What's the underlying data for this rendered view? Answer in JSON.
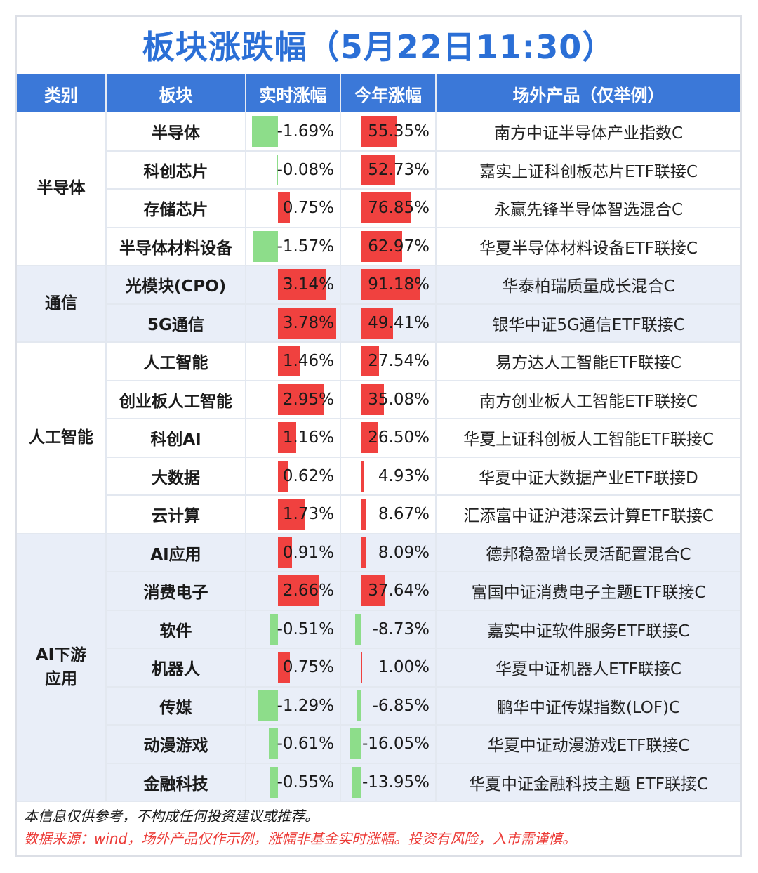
{
  "title": "板块涨跌幅（5月22日11:30）",
  "headers": [
    "类别",
    "板块",
    "实时涨幅",
    "今年涨幅",
    "场外产品（仅举例）"
  ],
  "colors": {
    "header_bg": "#3b78d8",
    "title": "#2b6fd6",
    "positive": "#f0413f",
    "negative": "#8ddd8a",
    "note_red": "#ec3b37"
  },
  "groups": [
    {
      "category": "半导体",
      "rows": [
        {
          "sector": "半导体",
          "realtime": "-1.69%",
          "rt": -1.69,
          "ytd": "55.35%",
          "yt": 55.35,
          "product": "南方中证半导体产业指数C"
        },
        {
          "sector": "科创芯片",
          "realtime": "-0.08%",
          "rt": -0.08,
          "ytd": "52.73%",
          "yt": 52.73,
          "product": "嘉实上证科创板芯片ETF联接C"
        },
        {
          "sector": "存储芯片",
          "realtime": "0.75%",
          "rt": 0.75,
          "ytd": "76.85%",
          "yt": 76.85,
          "product": "永赢先锋半导体智选混合C"
        },
        {
          "sector": "半导体材料设备",
          "realtime": "-1.57%",
          "rt": -1.57,
          "ytd": "62.97%",
          "yt": 62.97,
          "product": "华夏半导体材料设备ETF联接C"
        }
      ]
    },
    {
      "category": "通信",
      "rows": [
        {
          "sector": "光模块(CPO)",
          "realtime": "3.14%",
          "rt": 3.14,
          "ytd": "91.18%",
          "yt": 91.18,
          "product": "华泰柏瑞质量成长混合C"
        },
        {
          "sector": "5G通信",
          "realtime": "3.78%",
          "rt": 3.78,
          "ytd": "49.41%",
          "yt": 49.41,
          "product": "银华中证5G通信ETF联接C"
        }
      ]
    },
    {
      "category": "人工智能",
      "rows": [
        {
          "sector": "人工智能",
          "realtime": "1.46%",
          "rt": 1.46,
          "ytd": "27.54%",
          "yt": 27.54,
          "product": "易方达人工智能ETF联接C"
        },
        {
          "sector": "创业板人工智能",
          "realtime": "2.95%",
          "rt": 2.95,
          "ytd": "35.08%",
          "yt": 35.08,
          "product": "南方创业板人工智能ETF联接C"
        },
        {
          "sector": "科创AI",
          "realtime": "1.16%",
          "rt": 1.16,
          "ytd": "26.50%",
          "yt": 26.5,
          "product": "华夏上证科创板人工智能ETF联接C"
        },
        {
          "sector": "大数据",
          "realtime": "0.62%",
          "rt": 0.62,
          "ytd": "4.93%",
          "yt": 4.93,
          "product": "华夏中证大数据产业ETF联接D"
        },
        {
          "sector": "云计算",
          "realtime": "1.73%",
          "rt": 1.73,
          "ytd": "8.67%",
          "yt": 8.67,
          "product": "汇添富中证沪港深云计算ETF联接C"
        }
      ]
    },
    {
      "category": "AI下游应用",
      "rows": [
        {
          "sector": "AI应用",
          "realtime": "0.91%",
          "rt": 0.91,
          "ytd": "8.09%",
          "yt": 8.09,
          "product": "德邦稳盈增长灵活配置混合C"
        },
        {
          "sector": "消费电子",
          "realtime": "2.66%",
          "rt": 2.66,
          "ytd": "37.64%",
          "yt": 37.64,
          "product": "富国中证消费电子主题ETF联接C"
        },
        {
          "sector": "软件",
          "realtime": "-0.51%",
          "rt": -0.51,
          "ytd": "-8.73%",
          "yt": -8.73,
          "product": "嘉实中证软件服务ETF联接C"
        },
        {
          "sector": "机器人",
          "realtime": "0.75%",
          "rt": 0.75,
          "ytd": "1.00%",
          "yt": 1.0,
          "product": "华夏中证机器人ETF联接C"
        },
        {
          "sector": "传媒",
          "realtime": "-1.29%",
          "rt": -1.29,
          "ytd": "-6.85%",
          "yt": -6.85,
          "product": "鹏华中证传媒指数(LOF)C"
        },
        {
          "sector": "动漫游戏",
          "realtime": "-0.61%",
          "rt": -0.61,
          "ytd": "-16.05%",
          "yt": -16.05,
          "product": "华夏中证动漫游戏ETF联接C"
        },
        {
          "sector": "金融科技",
          "realtime": "-0.55%",
          "rt": -0.55,
          "ytd": "-13.95%",
          "yt": -13.95,
          "product": "华夏中证金融科技主题 ETF联接C"
        }
      ]
    }
  ],
  "notes": {
    "disclaimer": "本信息仅供参考，不构成任何投资建议或推荐。",
    "source": "数据来源：wind，场外产品仅作示例，涨幅非基金实时涨幅。投资有风险，入市需谨慎。"
  }
}
